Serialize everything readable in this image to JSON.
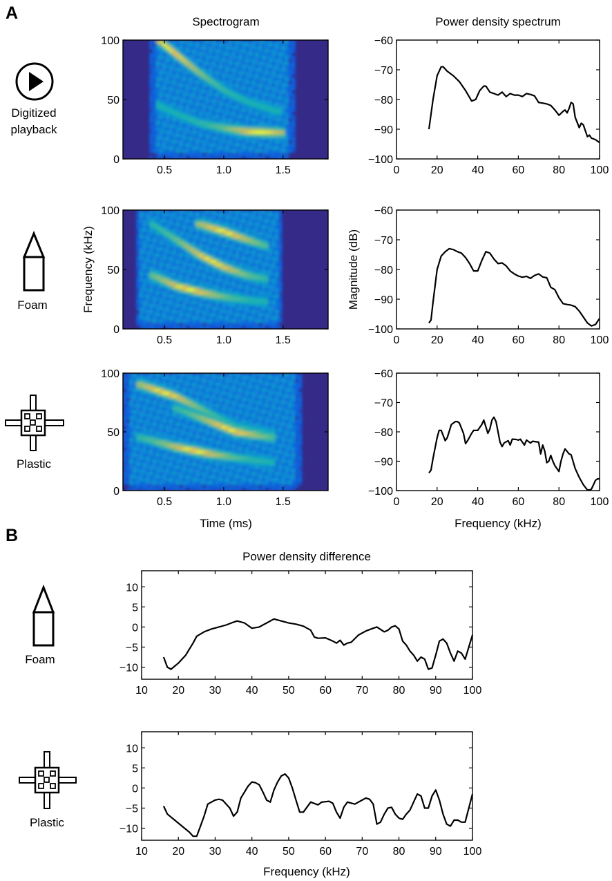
{
  "panels": {
    "a": "A",
    "b": "B"
  },
  "titles": {
    "spectrogram": "Spectrogram",
    "power_spectrum": "Power density spectrum",
    "difference": "Power density difference"
  },
  "rows": {
    "playback": {
      "line1": "Digitized",
      "line2": "playback",
      "icon": "play-icon"
    },
    "foam": {
      "label": "Foam",
      "icon": "foam-target-icon"
    },
    "plastic": {
      "label": "Plastic",
      "icon": "plastic-target-icon"
    }
  },
  "colors": {
    "line": "#000000",
    "spec_background": "#352a87",
    "spec_peak": "#f9fb0e"
  },
  "chart_data": [
    {
      "type": "heatmap",
      "id": "spec-playback",
      "xlabel": "",
      "ylabel": "",
      "xlim": [
        0.15,
        1.88
      ],
      "ylim": [
        0,
        100
      ],
      "xticks": [
        "0.5",
        "1.0",
        "1.5"
      ],
      "xtick_values": [
        0.5,
        1.0,
        1.5
      ],
      "yticks": [
        "0",
        "50",
        "100"
      ],
      "ytick_values": [
        0,
        50,
        100
      ],
      "signal_time_range": [
        0.42,
        1.55
      ],
      "components": [
        {
          "t": [
            0.45,
            0.6,
            0.8,
            1.0,
            1.2,
            1.45
          ],
          "f": [
            100,
            88,
            72,
            58,
            48,
            40
          ],
          "peak_time": 0.55
        },
        {
          "t": [
            0.45,
            0.6,
            0.8,
            1.0,
            1.2,
            1.5
          ],
          "f": [
            45,
            38,
            30,
            26,
            23,
            22
          ],
          "peak_time": 1.3
        }
      ]
    },
    {
      "type": "heatmap",
      "id": "spec-foam",
      "xlabel": "",
      "ylabel": "Frequency (kHz)",
      "xlim": [
        0.15,
        1.88
      ],
      "ylim": [
        0,
        100
      ],
      "xticks": [
        "0.5",
        "1.0",
        "1.5"
      ],
      "xtick_values": [
        0.5,
        1.0,
        1.5
      ],
      "yticks": [
        "0",
        "50",
        "100"
      ],
      "ytick_values": [
        0,
        50,
        100
      ],
      "signal_time_range": [
        0.3,
        1.45
      ],
      "components": [
        {
          "t": [
            0.4,
            0.6,
            0.8,
            1.0,
            1.2,
            1.35
          ],
          "f": [
            88,
            75,
            62,
            52,
            45,
            42
          ],
          "peak_time": 0.9
        },
        {
          "t": [
            0.4,
            0.6,
            0.8,
            1.0,
            1.2,
            1.35
          ],
          "f": [
            45,
            36,
            31,
            27,
            24,
            23
          ],
          "peak_time": 0.7
        },
        {
          "t": [
            0.8,
            1.0,
            1.2,
            1.35
          ],
          "f": [
            88,
            82,
            75,
            70
          ],
          "peak_time": 1.0
        }
      ]
    },
    {
      "type": "heatmap",
      "id": "spec-plastic",
      "xlabel": "Time (ms)",
      "ylabel": "",
      "xlim": [
        0.15,
        1.88
      ],
      "ylim": [
        0,
        100
      ],
      "xticks": [
        "0.5",
        "1.0",
        "1.5"
      ],
      "xtick_values": [
        0.5,
        1.0,
        1.5
      ],
      "yticks": [
        "0",
        "50",
        "100"
      ],
      "ytick_values": [
        0,
        50,
        100
      ],
      "signal_time_range": [
        0.2,
        1.6
      ],
      "components": [
        {
          "t": [
            0.3,
            0.6,
            0.9,
            1.1,
            1.4
          ],
          "f": [
            90,
            80,
            65,
            55,
            48
          ],
          "peak_time": 0.5
        },
        {
          "t": [
            0.3,
            0.6,
            0.9,
            1.1,
            1.4
          ],
          "f": [
            45,
            37,
            31,
            28,
            24
          ],
          "peak_time": 0.75
        },
        {
          "t": [
            0.6,
            0.9,
            1.1,
            1.4
          ],
          "f": [
            70,
            58,
            50,
            45
          ],
          "peak_time": 1.05
        }
      ]
    },
    {
      "type": "line",
      "id": "pds-playback",
      "xlabel": "",
      "ylabel": "",
      "xlim": [
        0,
        100
      ],
      "ylim": [
        -100,
        -60
      ],
      "xticks": [
        "0",
        "20",
        "40",
        "60",
        "80",
        "100"
      ],
      "xtick_values": [
        0,
        20,
        40,
        60,
        80,
        100
      ],
      "yticks": [
        "−100",
        "−90",
        "−80",
        "−70",
        "−60"
      ],
      "ytick_values": [
        -100,
        -90,
        -80,
        -70,
        -60
      ],
      "x": [
        16,
        18,
        20,
        22,
        23,
        25,
        28,
        31,
        34,
        37,
        39,
        41,
        43,
        44,
        46,
        48,
        50,
        52,
        54,
        56,
        58,
        60,
        62,
        64,
        66,
        68,
        70,
        72,
        74,
        76,
        78,
        80,
        82,
        83,
        84,
        85,
        86,
        87,
        88,
        90,
        91,
        92,
        93,
        94,
        95,
        96,
        98,
        100
      ],
      "y": [
        -90,
        -80,
        -72,
        -69,
        -69,
        -70.5,
        -72,
        -74,
        -77,
        -80.5,
        -80,
        -77,
        -75.5,
        -75.5,
        -77.5,
        -78,
        -78.5,
        -77.5,
        -79,
        -78,
        -78.5,
        -78.5,
        -79,
        -78,
        -78.3,
        -78.8,
        -81,
        -81.2,
        -81.5,
        -82,
        -83.5,
        -85.3,
        -84,
        -83.5,
        -84.5,
        -83,
        -81,
        -81.5,
        -86,
        -89.5,
        -88,
        -88.5,
        -90.5,
        -92.5,
        -92,
        -93,
        -93.5,
        -94.5
      ]
    },
    {
      "type": "line",
      "id": "pds-foam",
      "xlabel": "",
      "ylabel": "Magnitude (dB)",
      "xlim": [
        0,
        100
      ],
      "ylim": [
        -100,
        -60
      ],
      "xticks": [
        "0",
        "20",
        "40",
        "60",
        "80",
        "100"
      ],
      "xtick_values": [
        0,
        20,
        40,
        60,
        80,
        100
      ],
      "yticks": [
        "−100",
        "−90",
        "−80",
        "−70",
        "−60"
      ],
      "ytick_values": [
        -100,
        -90,
        -80,
        -70,
        -60
      ],
      "x": [
        16,
        17,
        18,
        20,
        22,
        24,
        26,
        28,
        30,
        32,
        34,
        36,
        38,
        40,
        42,
        44,
        46,
        48,
        50,
        52,
        54,
        56,
        58,
        60,
        62,
        64,
        66,
        68,
        70,
        72,
        74,
        76,
        78,
        80,
        82,
        84,
        86,
        88,
        90,
        92,
        94,
        96,
        98,
        100
      ],
      "y": [
        -98,
        -97,
        -91,
        -80,
        -75.5,
        -74,
        -73,
        -73.3,
        -74,
        -74.5,
        -76,
        -78,
        -80.5,
        -80.5,
        -77,
        -74,
        -74.5,
        -76.5,
        -78,
        -77.8,
        -78.8,
        -80.5,
        -81.5,
        -82.2,
        -82.6,
        -82.3,
        -83,
        -82,
        -81.5,
        -82.5,
        -82.8,
        -86,
        -86.8,
        -89.5,
        -91.5,
        -91.8,
        -92,
        -92.5,
        -94,
        -96,
        -98,
        -99,
        -98.5,
        -96.5
      ]
    },
    {
      "type": "line",
      "id": "pds-plastic",
      "xlabel": "Frequency (kHz)",
      "ylabel": "",
      "xlim": [
        0,
        100
      ],
      "ylim": [
        -100,
        -60
      ],
      "xticks": [
        "0",
        "20",
        "40",
        "60",
        "80",
        "100"
      ],
      "xtick_values": [
        0,
        20,
        40,
        60,
        80,
        100
      ],
      "yticks": [
        "−100",
        "−90",
        "−80",
        "−70",
        "−60"
      ],
      "ytick_values": [
        -100,
        -90,
        -80,
        -70,
        -60
      ],
      "x": [
        16,
        17,
        18,
        20,
        21,
        22,
        24,
        25,
        27,
        29,
        30,
        31,
        33,
        34,
        35,
        37,
        38,
        40,
        42,
        43,
        45,
        46,
        47,
        48,
        49,
        51,
        52,
        53,
        55,
        56,
        57,
        59,
        60,
        61,
        63,
        64,
        66,
        67,
        70,
        71,
        72,
        73,
        74,
        75,
        76,
        77,
        78,
        80,
        81,
        82,
        83,
        85,
        86,
        88,
        90,
        92,
        94,
        95,
        96,
        97,
        98,
        99,
        100
      ],
      "y": [
        -94,
        -93,
        -89,
        -82,
        -79.5,
        -79.5,
        -83,
        -82,
        -77.5,
        -76.5,
        -76.5,
        -77,
        -80.5,
        -84,
        -83,
        -80.5,
        -79.5,
        -79.5,
        -77.5,
        -76,
        -80.5,
        -79,
        -76,
        -75,
        -76.5,
        -83.5,
        -85,
        -83.8,
        -83,
        -84.5,
        -82.5,
        -82.6,
        -82.8,
        -82.5,
        -84.5,
        -82.8,
        -83.8,
        -83.2,
        -83.5,
        -87.5,
        -84.5,
        -86.5,
        -90.5,
        -90,
        -88,
        -90,
        -91.5,
        -93.5,
        -90,
        -87.5,
        -85.8,
        -87.5,
        -87.8,
        -92.5,
        -95.5,
        -98,
        -99.8,
        -99.8,
        -99.5,
        -98,
        -96.5,
        -96,
        -96
      ]
    },
    {
      "type": "line",
      "id": "diff-foam",
      "xlabel": "",
      "ylabel": "",
      "xlim": [
        10,
        100
      ],
      "ylim": [
        -13,
        14
      ],
      "xticks": [
        "10",
        "20",
        "30",
        "40",
        "50",
        "60",
        "70",
        "80",
        "90",
        "100"
      ],
      "xtick_values": [
        10,
        20,
        30,
        40,
        50,
        60,
        70,
        80,
        90,
        100
      ],
      "yticks": [
        "−10",
        "−5",
        "0",
        "5",
        "10"
      ],
      "ytick_values": [
        -10,
        -5,
        0,
        5,
        10
      ],
      "x": [
        16,
        17,
        18,
        20,
        22,
        24,
        25,
        27,
        29,
        31,
        33,
        35,
        36,
        38,
        40,
        42,
        44,
        46,
        48,
        50,
        52,
        54,
        56,
        57,
        58,
        60,
        62,
        63,
        64,
        65,
        66,
        67,
        69,
        71,
        73,
        74,
        76,
        77,
        78,
        79,
        80,
        81,
        82,
        83,
        84,
        85,
        86,
        87,
        88,
        89,
        90,
        91,
        92,
        93,
        94,
        95,
        96,
        97,
        98,
        100
      ],
      "y": [
        -7.5,
        -10,
        -10.5,
        -9,
        -7,
        -4,
        -2.3,
        -1.2,
        -0.5,
        0,
        0.5,
        1.2,
        1.5,
        1,
        -0.3,
        0,
        1,
        2,
        1.5,
        1,
        0.7,
        0.2,
        -0.8,
        -2.5,
        -2.8,
        -2.7,
        -3.5,
        -4,
        -3.3,
        -4.5,
        -4,
        -3.8,
        -2,
        -1,
        -0.3,
        0,
        -1.2,
        -0.8,
        0,
        0.3,
        -0.5,
        -3.5,
        -4.5,
        -6,
        -7,
        -8.5,
        -7.5,
        -8,
        -10.5,
        -10.2,
        -7,
        -3.5,
        -3,
        -4,
        -6.5,
        -8.5,
        -6,
        -6.5,
        -8,
        -2
      ]
    },
    {
      "type": "line",
      "id": "diff-plastic",
      "xlabel": "Frequency (kHz)",
      "ylabel": "",
      "xlim": [
        10,
        100
      ],
      "ylim": [
        -13,
        14
      ],
      "xticks": [
        "10",
        "20",
        "30",
        "40",
        "50",
        "60",
        "70",
        "80",
        "90",
        "100"
      ],
      "xtick_values": [
        10,
        20,
        30,
        40,
        50,
        60,
        70,
        80,
        90,
        100
      ],
      "yticks": [
        "−10",
        "−5",
        "0",
        "5",
        "10"
      ],
      "ytick_values": [
        -10,
        -5,
        0,
        5,
        10
      ],
      "x": [
        16,
        17,
        19,
        21,
        23,
        24,
        25,
        26,
        27,
        28,
        30,
        31,
        32,
        34,
        35,
        36,
        37,
        39,
        40,
        41,
        42,
        43,
        44,
        45,
        46,
        47,
        48,
        49,
        50,
        51,
        52,
        53,
        54,
        56,
        58,
        59,
        61,
        62,
        63,
        64,
        65,
        66,
        68,
        70,
        71,
        72,
        73,
        74,
        75,
        76,
        77,
        78,
        79,
        80,
        81,
        82,
        83,
        84,
        85,
        86,
        87,
        88,
        89,
        90,
        91,
        92,
        93,
        94,
        95,
        96,
        97,
        98,
        99,
        100
      ],
      "y": [
        -4.5,
        -6.5,
        -8,
        -9.5,
        -11,
        -12,
        -12,
        -9.5,
        -7,
        -4,
        -3,
        -2.8,
        -3,
        -5,
        -7,
        -6,
        -2.5,
        0.5,
        1.5,
        1.3,
        0.8,
        -1,
        -3,
        -3.5,
        -0.5,
        1.5,
        3,
        3.5,
        2.5,
        0,
        -3,
        -6,
        -6,
        -3.5,
        -4.2,
        -3.5,
        -3.3,
        -3.8,
        -6,
        -7.5,
        -4.8,
        -3.5,
        -4,
        -3,
        -2.5,
        -2.8,
        -4,
        -9,
        -8.5,
        -6.5,
        -5,
        -4.8,
        -6.5,
        -7.5,
        -7.8,
        -6.5,
        -5.5,
        -3.5,
        -1.5,
        -2,
        -5,
        -5,
        -2,
        -0.5,
        -3,
        -6.5,
        -9,
        -9.5,
        -8,
        -8,
        -8.5,
        -8.5,
        -5,
        -1.5
      ]
    }
  ]
}
